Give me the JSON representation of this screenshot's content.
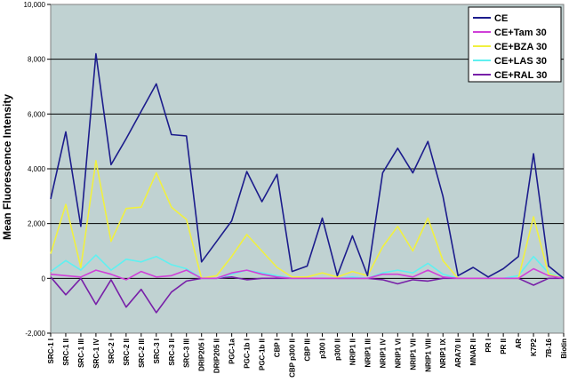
{
  "chart_data": {
    "type": "line",
    "title": "",
    "xlabel": "",
    "ylabel": "Mean Fluorescence Intensity",
    "ylim": [
      -2000,
      10000
    ],
    "yticks": [
      -2000,
      0,
      2000,
      4000,
      6000,
      8000,
      10000
    ],
    "ytick_labels": [
      "-2,000",
      "0",
      "2,000",
      "4,000",
      "6,000",
      "8,000",
      "10,000"
    ],
    "grid": true,
    "plot_background": "#c0d2d2",
    "legend_position": "top-right",
    "categories": [
      "SRC-1 I",
      "SRC-1 II",
      "SRC-1 III",
      "SRC-1 IV",
      "SRC-2 I",
      "SRC-2 II",
      "SRC-2 III",
      "SRC-3 I",
      "SRC-3 II",
      "SRC-3 III",
      "DRIP205 I",
      "DRIP205 II",
      "PGC-1a",
      "PGC-1b I",
      "PGC-1b II",
      "CBP I",
      "CBP p300 II",
      "CBP III",
      "p300 I",
      "p300 II",
      "NRIP1 II",
      "NRIP1 III",
      "NRIP1 IV",
      "NRIP1 VI",
      "NRIP1 VII",
      "NRIP1 VIII",
      "NRIP1 IX",
      "ARA70 II",
      "MNAR II",
      "PR I",
      "PR II",
      "AR",
      "K7P2",
      "7B-16",
      "Biotin"
    ],
    "series": [
      {
        "name": "CE",
        "color": "#1c1c8c",
        "values": [
          2900,
          5350,
          1900,
          8200,
          4150,
          5100,
          6100,
          7100,
          5250,
          5200,
          600,
          1350,
          2100,
          3900,
          2800,
          3800,
          250,
          450,
          2200,
          100,
          1550,
          100,
          3850,
          4750,
          3850,
          5000,
          3000,
          100,
          400,
          50,
          350,
          800,
          4550,
          450,
          0
        ]
      },
      {
        "name": "CE+Tam 30",
        "color": "#d040d8",
        "values": [
          150,
          100,
          50,
          300,
          150,
          -50,
          250,
          50,
          100,
          300,
          0,
          0,
          200,
          300,
          150,
          50,
          0,
          0,
          0,
          0,
          0,
          0,
          150,
          150,
          50,
          300,
          50,
          0,
          0,
          0,
          0,
          0,
          350,
          100,
          0
        ]
      },
      {
        "name": "CE+BZA 30",
        "color": "#f0f040",
        "values": [
          900,
          2700,
          400,
          4300,
          1350,
          2550,
          2600,
          3850,
          2600,
          2150,
          0,
          100,
          800,
          1600,
          1000,
          400,
          50,
          50,
          200,
          50,
          250,
          100,
          1150,
          1900,
          1000,
          2200,
          650,
          0,
          0,
          0,
          0,
          0,
          2250,
          150,
          0
        ]
      },
      {
        "name": "CE+LAS 30",
        "color": "#60f0f0",
        "values": [
          250,
          650,
          300,
          850,
          300,
          700,
          600,
          800,
          500,
          350,
          0,
          0,
          150,
          300,
          200,
          100,
          0,
          0,
          0,
          0,
          50,
          0,
          200,
          300,
          200,
          550,
          150,
          0,
          0,
          0,
          0,
          100,
          800,
          200,
          0
        ]
      },
      {
        "name": "CE+RAL 30",
        "color": "#7820a8",
        "values": [
          50,
          -600,
          0,
          -950,
          -50,
          -1050,
          -400,
          -1250,
          -500,
          -100,
          0,
          0,
          50,
          -50,
          0,
          0,
          0,
          0,
          0,
          0,
          0,
          0,
          -50,
          -200,
          -50,
          -100,
          0,
          0,
          0,
          0,
          0,
          0,
          -250,
          0,
          0
        ]
      }
    ]
  }
}
